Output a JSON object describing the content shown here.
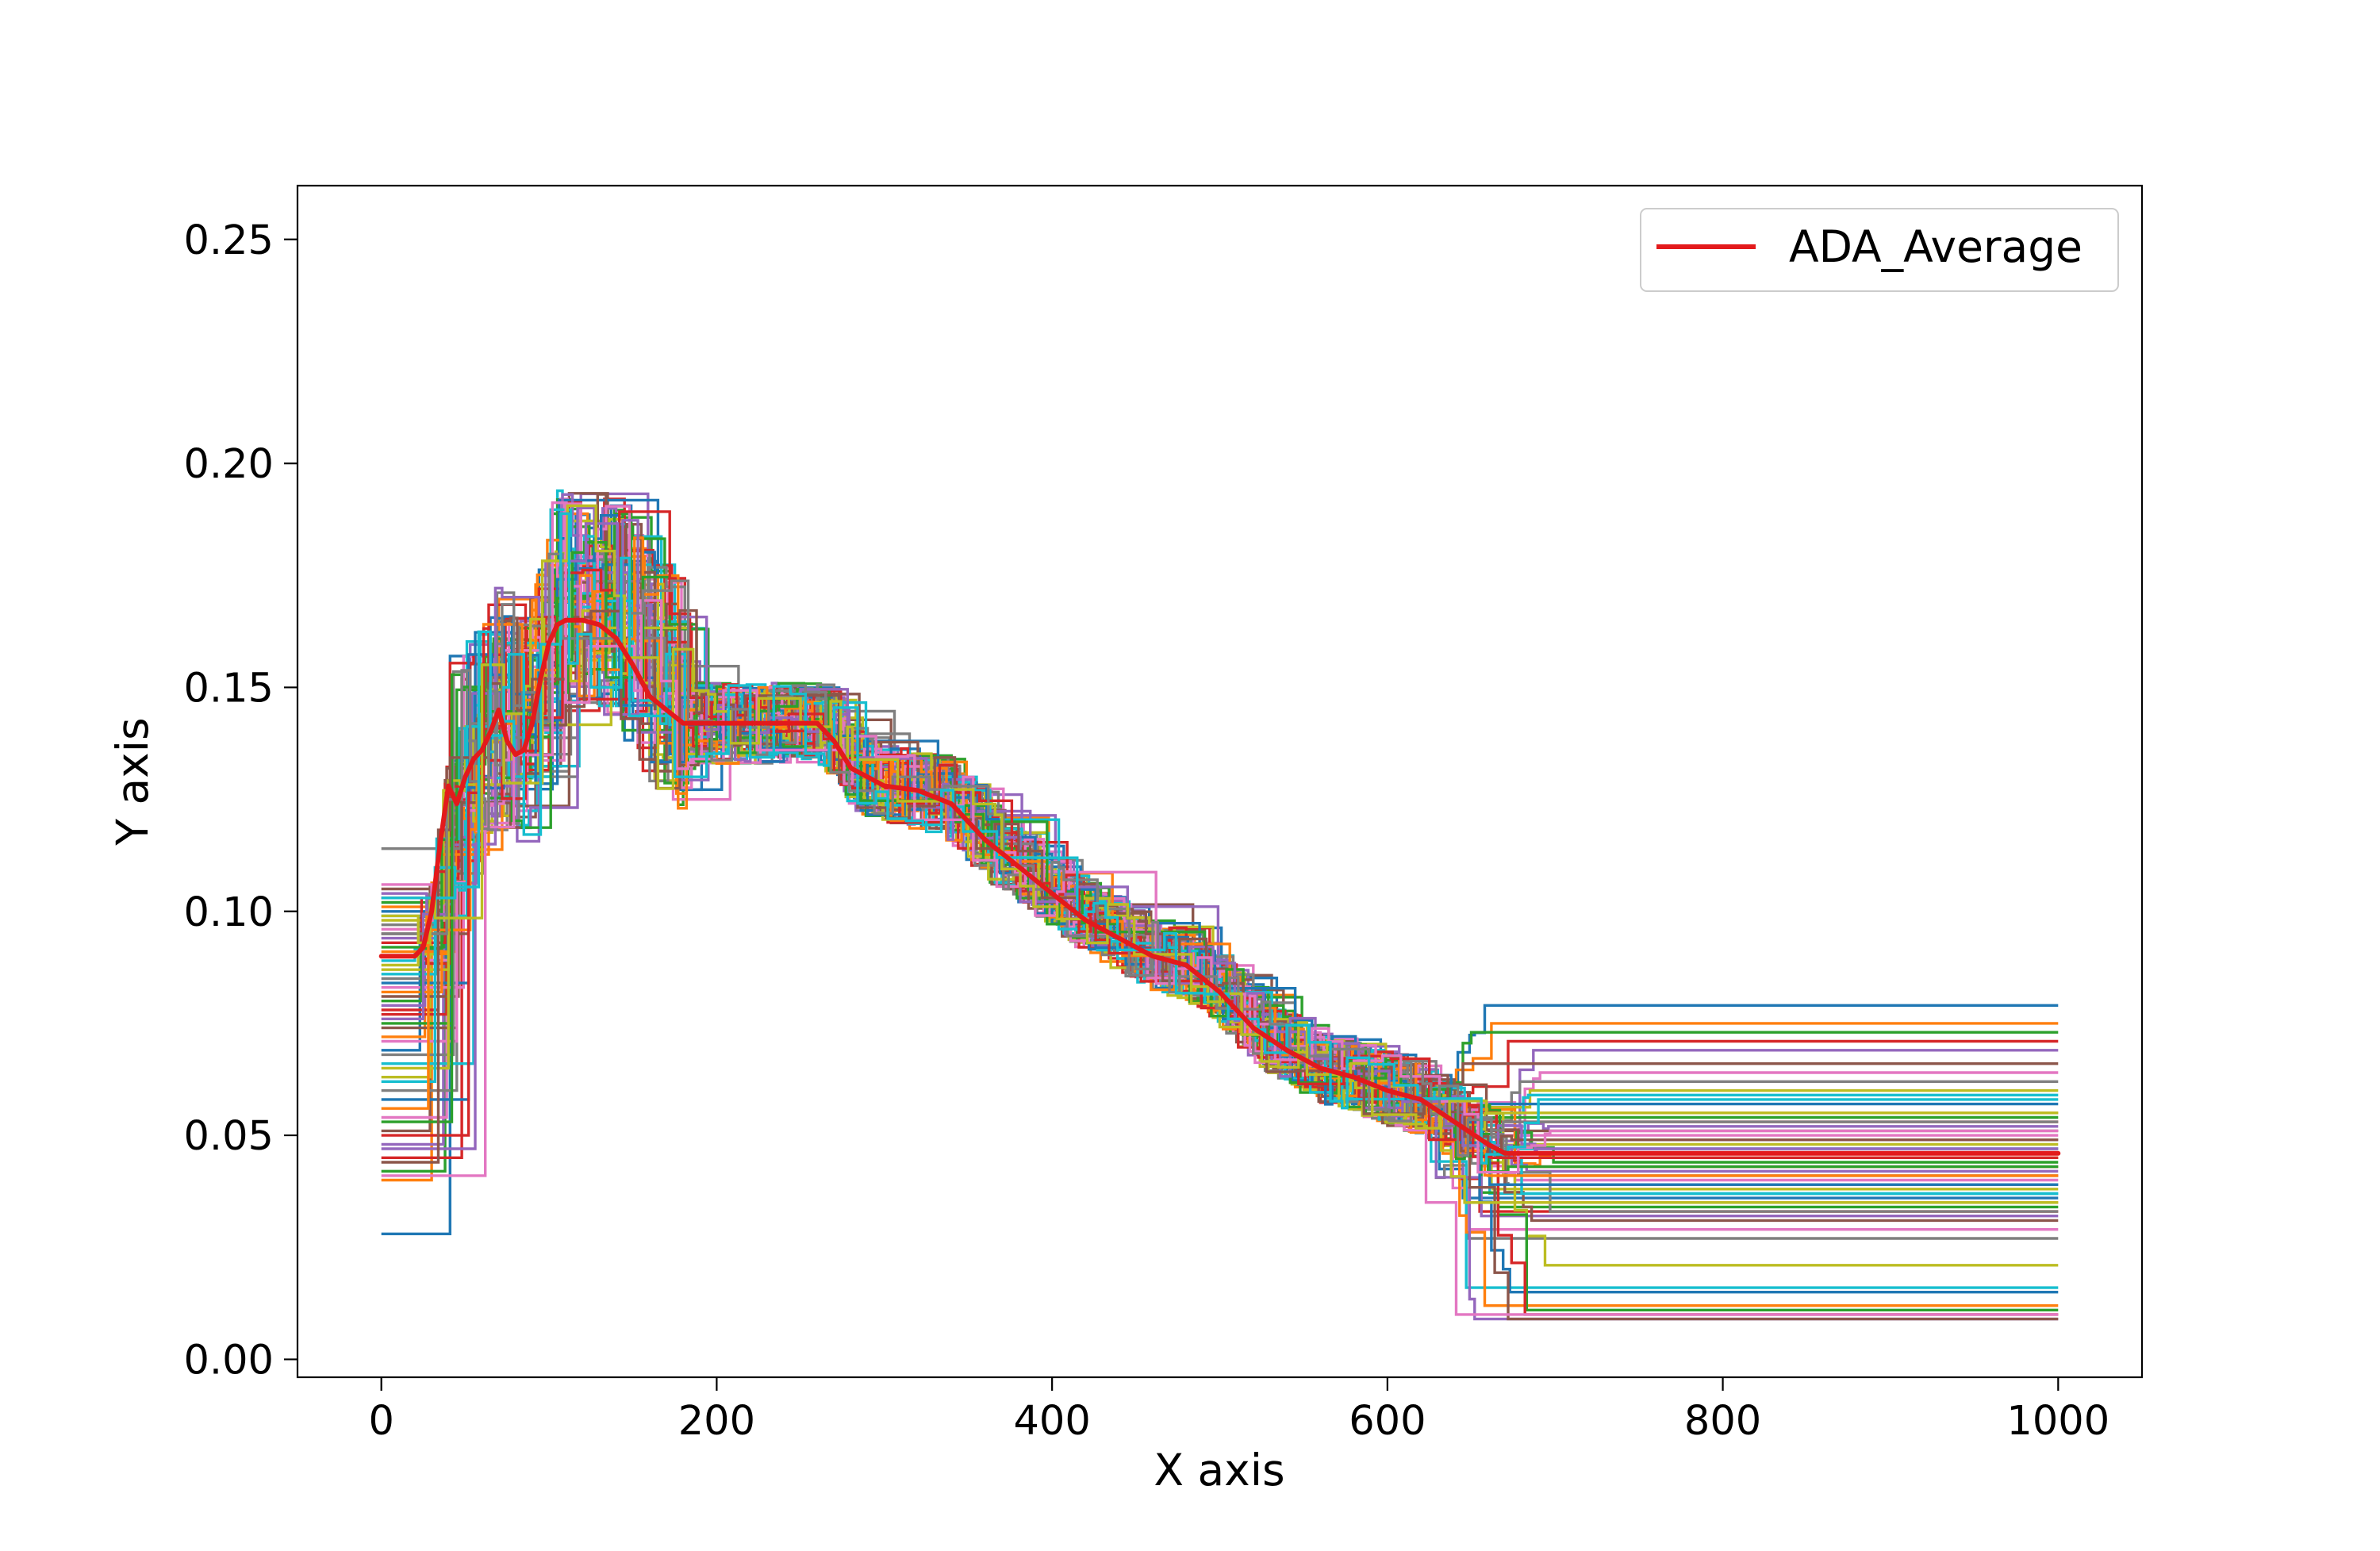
{
  "chart_data": {
    "type": "line",
    "title": "",
    "xlabel": "X axis",
    "ylabel": "Y axis",
    "xlim": [
      -50,
      1050
    ],
    "ylim": [
      -0.004,
      0.262
    ],
    "xticks": [
      0,
      200,
      400,
      600,
      800,
      1000
    ],
    "yticks": [
      0.0,
      0.05,
      0.1,
      0.15,
      0.2,
      0.25
    ],
    "xtick_labels": [
      "0",
      "200",
      "400",
      "600",
      "800",
      "1000"
    ],
    "ytick_labels": [
      "0.00",
      "0.05",
      "0.10",
      "0.15",
      "0.20",
      "0.25"
    ],
    "grid": false,
    "legend_position": "top-right",
    "background_series": {
      "count": 60,
      "color_cycle": [
        "#1f77b4",
        "#ff7f0e",
        "#2ca02c",
        "#d62728",
        "#9467bd",
        "#8c564b",
        "#e377c2",
        "#7f7f7f",
        "#bcbd22",
        "#17becf"
      ],
      "start_values": [
        0.028,
        0.04,
        0.042,
        0.045,
        0.048,
        0.051,
        0.054,
        0.06,
        0.063,
        0.066,
        0.069,
        0.072,
        0.075,
        0.077,
        0.079,
        0.081,
        0.083,
        0.085,
        0.087,
        0.089,
        0.09,
        0.091,
        0.092,
        0.093,
        0.094,
        0.095,
        0.096,
        0.097,
        0.098,
        0.099,
        0.1,
        0.101,
        0.102,
        0.103,
        0.104,
        0.105,
        0.106,
        0.114,
        0.088,
        0.086,
        0.084,
        0.082,
        0.08,
        0.078,
        0.076,
        0.074,
        0.071,
        0.068,
        0.065,
        0.062,
        0.058,
        0.056,
        0.053,
        0.05,
        0.047,
        0.044,
        0.041,
        0.095,
        0.099,
        0.103
      ],
      "end_values": [
        0.079,
        0.075,
        0.073,
        0.071,
        0.069,
        0.066,
        0.064,
        0.062,
        0.06,
        0.059,
        0.057,
        0.055,
        0.054,
        0.053,
        0.052,
        0.051,
        0.05,
        0.049,
        0.048,
        0.047,
        0.046,
        0.045,
        0.044,
        0.043,
        0.042,
        0.041,
        0.04,
        0.039,
        0.038,
        0.037,
        0.036,
        0.035,
        0.034,
        0.033,
        0.032,
        0.031,
        0.029,
        0.027,
        0.021,
        0.016,
        0.015,
        0.012,
        0.011,
        0.01,
        0.009,
        0.009,
        0.01,
        0.033,
        0.035,
        0.037,
        0.039,
        0.041,
        0.043,
        0.045,
        0.047,
        0.049,
        0.051,
        0.053,
        0.055,
        0.058
      ]
    },
    "series": [
      {
        "name": "ADA_Average",
        "color": "#e31a1c",
        "x": [
          0,
          20,
          25,
          30,
          35,
          40,
          45,
          50,
          55,
          60,
          65,
          70,
          75,
          80,
          85,
          90,
          95,
          100,
          105,
          110,
          115,
          120,
          130,
          140,
          150,
          160,
          170,
          180,
          200,
          220,
          240,
          260,
          270,
          280,
          290,
          300,
          320,
          340,
          360,
          380,
          400,
          420,
          440,
          460,
          480,
          500,
          520,
          540,
          560,
          580,
          600,
          620,
          640,
          660,
          670,
          680,
          700,
          800,
          900,
          1000
        ],
        "y": [
          0.09,
          0.09,
          0.092,
          0.1,
          0.115,
          0.128,
          0.124,
          0.13,
          0.134,
          0.136,
          0.14,
          0.145,
          0.138,
          0.135,
          0.136,
          0.142,
          0.152,
          0.16,
          0.164,
          0.165,
          0.165,
          0.165,
          0.164,
          0.161,
          0.155,
          0.148,
          0.145,
          0.142,
          0.142,
          0.142,
          0.142,
          0.142,
          0.138,
          0.132,
          0.13,
          0.128,
          0.127,
          0.124,
          0.116,
          0.11,
          0.104,
          0.098,
          0.094,
          0.09,
          0.088,
          0.082,
          0.074,
          0.069,
          0.065,
          0.063,
          0.06,
          0.058,
          0.053,
          0.048,
          0.046,
          0.046,
          0.046,
          0.046,
          0.046,
          0.046
        ]
      }
    ]
  }
}
